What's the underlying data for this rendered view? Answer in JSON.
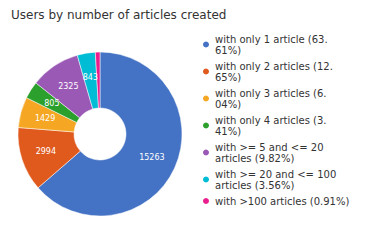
{
  "chart_data": {
    "type": "pie",
    "title": "Users by number of articles created",
    "categories": [
      "with only 1 article (63.\n61%)",
      "with only 2 articles (12.\n65%)",
      "with only 3 articles (6.\n04%)",
      "with only 4 articles (3.\n41%)",
      "with >= 5 and <= 20\narticles (9.82%)",
      "with >= 20 and <= 100\narticles (3.56%)",
      "with >100 articles (0.91%)"
    ],
    "values": [
      63.61,
      12.65,
      6.04,
      3.41,
      9.82,
      3.56,
      0.91
    ],
    "counts": [
      15263,
      2994,
      1429,
      805,
      2325,
      843,
      null
    ],
    "colors": [
      "#4472c4",
      "#e05a1e",
      "#f5a623",
      "#2ca02c",
      "#9b59b6",
      "#00bcd4",
      "#e91e8c"
    ],
    "legend": "right"
  }
}
